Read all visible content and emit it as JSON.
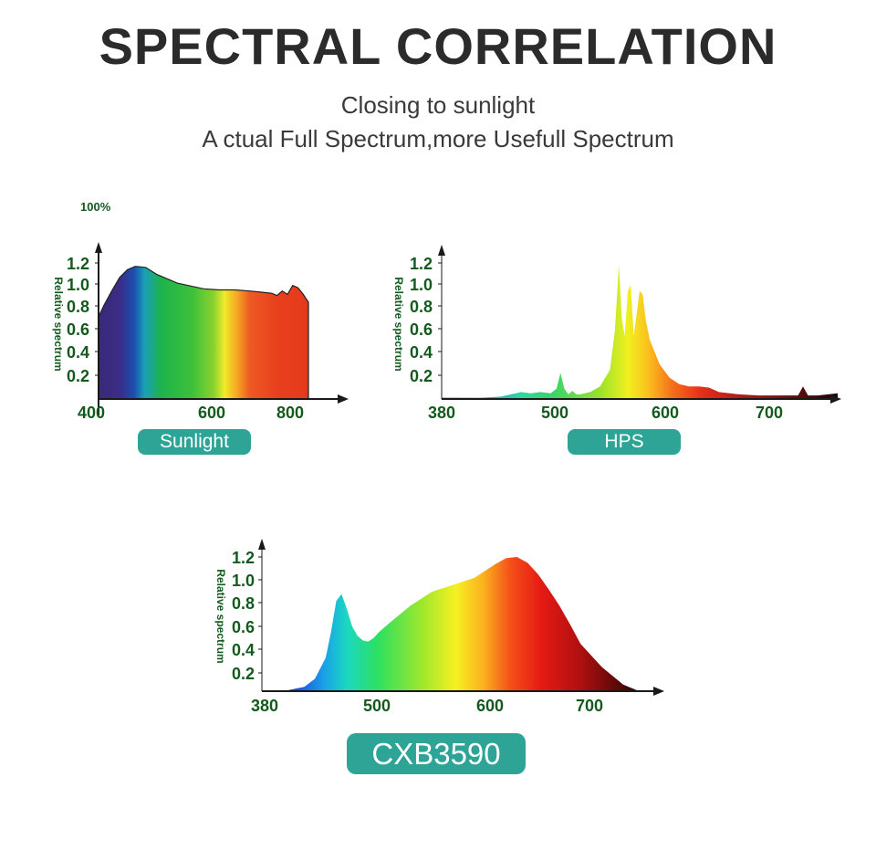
{
  "header": {
    "title": "SPECTRAL CORRELATION",
    "subtitle1": "Closing to sunlight",
    "subtitle2": "A  ctual Full Spectrum,more Usefull Spectrum",
    "percent_label": "100%"
  },
  "chart_data": [
    {
      "type": "area",
      "name": "Sunlight",
      "badge": "Sunlight",
      "ylabel": "Relative spectrum",
      "xlabel": "",
      "x_ticks": [
        "400",
        "600",
        "800"
      ],
      "y_ticks": [
        "1.2",
        "1.0",
        "0.8",
        "0.6",
        "0.4",
        "0.2"
      ],
      "xlim": [
        400,
        860
      ],
      "ylim": [
        0,
        1.3
      ],
      "x": [
        400,
        410,
        425,
        440,
        455,
        470,
        490,
        510,
        530,
        550,
        570,
        600,
        630,
        660,
        690,
        710,
        730,
        740,
        750,
        760,
        770,
        780,
        790,
        800
      ],
      "y": [
        0.72,
        0.82,
        0.95,
        1.07,
        1.14,
        1.17,
        1.16,
        1.1,
        1.06,
        1.02,
        1.0,
        0.97,
        0.96,
        0.96,
        0.95,
        0.94,
        0.93,
        0.91,
        0.95,
        0.92,
        1.0,
        0.98,
        0.92,
        0.85
      ]
    },
    {
      "type": "area",
      "name": "HPS",
      "badge": "HPS",
      "ylabel": "Relative spectrum",
      "xlabel": "",
      "x_ticks": [
        "380",
        "500",
        "600",
        "700"
      ],
      "y_ticks": [
        "1.2",
        "1.0",
        "0.8",
        "0.6",
        "0.4",
        "0.2"
      ],
      "xlim": [
        380,
        800
      ],
      "ylim": [
        0,
        1.3
      ],
      "x": [
        380,
        420,
        440,
        450,
        455,
        460,
        470,
        480,
        490,
        496,
        500,
        504,
        508,
        512,
        516,
        520,
        530,
        540,
        550,
        555,
        559,
        562,
        565,
        568,
        571,
        574,
        577,
        580,
        583,
        586,
        590,
        600,
        610,
        620,
        630,
        640,
        650,
        660,
        680,
        700,
        720,
        740,
        745,
        750,
        760,
        780
      ],
      "y": [
        0.0,
        0.0,
        0.01,
        0.03,
        0.04,
        0.05,
        0.04,
        0.05,
        0.04,
        0.08,
        0.22,
        0.08,
        0.03,
        0.06,
        0.03,
        0.03,
        0.05,
        0.1,
        0.25,
        0.6,
        1.18,
        0.7,
        0.55,
        0.95,
        1.0,
        0.55,
        0.75,
        0.95,
        0.92,
        0.7,
        0.52,
        0.3,
        0.18,
        0.12,
        0.1,
        0.1,
        0.09,
        0.05,
        0.03,
        0.02,
        0.02,
        0.02,
        0.1,
        0.02,
        0.02,
        0.04
      ]
    },
    {
      "type": "area",
      "name": "CXB3590",
      "badge": "CXB3590",
      "ylabel": "Relative spectrum",
      "xlabel": "",
      "x_ticks": [
        "380",
        "500",
        "600",
        "700"
      ],
      "y_ticks": [
        "1.2",
        "1.0",
        "0.8",
        "0.6",
        "0.4",
        "0.2"
      ],
      "xlim": [
        380,
        750
      ],
      "ylim": [
        0,
        1.3
      ],
      "x": [
        380,
        400,
        420,
        430,
        440,
        445,
        450,
        455,
        460,
        465,
        470,
        475,
        480,
        485,
        490,
        500,
        520,
        540,
        560,
        580,
        600,
        610,
        620,
        630,
        640,
        650,
        660,
        670,
        680,
        700,
        720,
        735,
        740
      ],
      "y": [
        0.0,
        0.02,
        0.08,
        0.15,
        0.33,
        0.55,
        0.82,
        0.88,
        0.75,
        0.6,
        0.52,
        0.48,
        0.47,
        0.5,
        0.55,
        0.63,
        0.78,
        0.9,
        0.96,
        1.02,
        1.14,
        1.19,
        1.2,
        1.15,
        1.05,
        0.92,
        0.78,
        0.62,
        0.45,
        0.25,
        0.1,
        0.02,
        0.0
      ]
    }
  ]
}
